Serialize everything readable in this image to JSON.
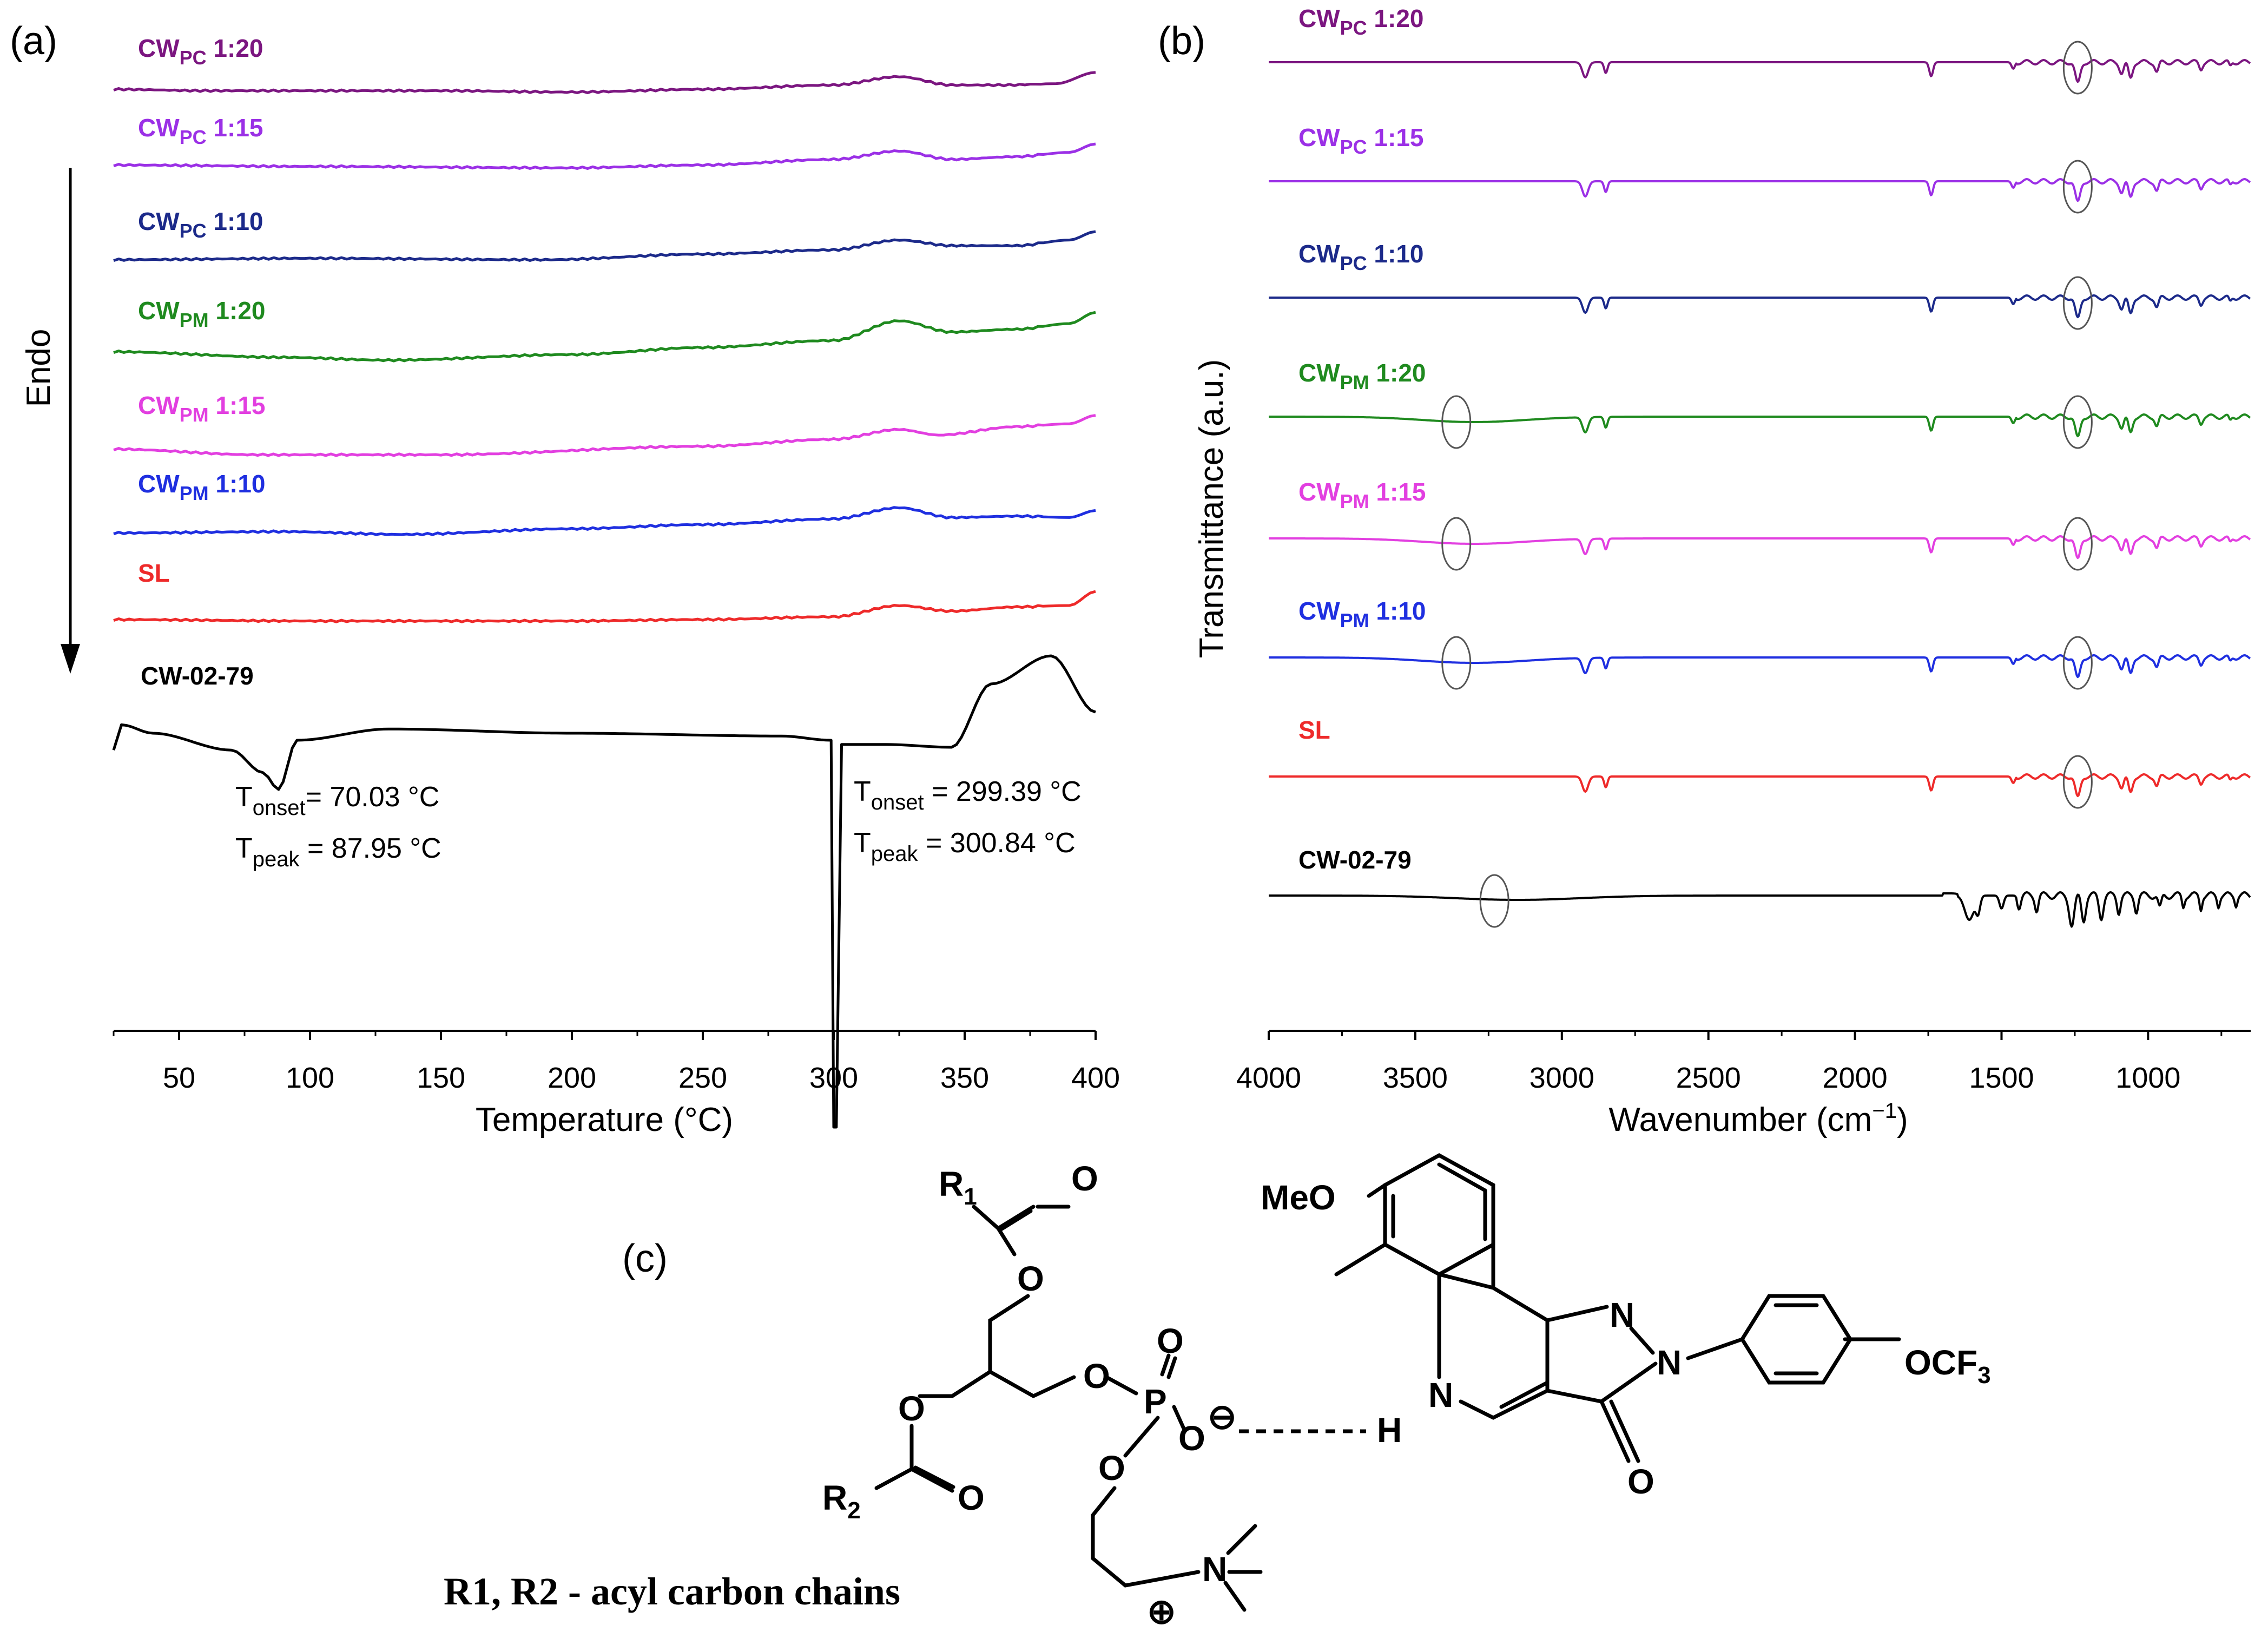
{
  "chart_data": [
    {
      "panel": "(a)",
      "type": "line",
      "xlabel": "Temperature (°C)",
      "ylabel": "Endo",
      "xlim": [
        25,
        400
      ],
      "xticks": [
        50,
        100,
        150,
        200,
        250,
        300,
        350,
        400
      ],
      "series": [
        {
          "name": "CW",
          "sub": "PC",
          "ratio": " 1:20",
          "color": "#7b1680",
          "points": [
            [
              25,
              0
            ],
            [
              60,
              -1
            ],
            [
              150,
              -1
            ],
            [
              200,
              -2
            ],
            [
              250,
              0
            ],
            [
              300,
              3
            ],
            [
              325,
              9
            ],
            [
              345,
              3
            ],
            [
              365,
              3
            ],
            [
              385,
              4
            ],
            [
              400,
              12
            ]
          ]
        },
        {
          "name": "CW",
          "sub": "PC",
          "ratio": " 1:15",
          "color": "#9b30e6",
          "points": [
            [
              25,
              0
            ],
            [
              100,
              -1
            ],
            [
              200,
              -2
            ],
            [
              250,
              0
            ],
            [
              300,
              4
            ],
            [
              325,
              10
            ],
            [
              345,
              4
            ],
            [
              370,
              6
            ],
            [
              390,
              9
            ],
            [
              400,
              15
            ]
          ]
        },
        {
          "name": "CW",
          "sub": "PC",
          "ratio": " 1:10",
          "color": "#1c2a8a",
          "points": [
            [
              25,
              0
            ],
            [
              100,
              1
            ],
            [
              190,
              0
            ],
            [
              250,
              4
            ],
            [
              300,
              7
            ],
            [
              325,
              14
            ],
            [
              345,
              10
            ],
            [
              370,
              10
            ],
            [
              390,
              14
            ],
            [
              400,
              20
            ]
          ]
        },
        {
          "name": "CW",
          "sub": "PM",
          "ratio": " 1:20",
          "color": "#1f8a1f",
          "points": [
            [
              25,
              0
            ],
            [
              90,
              -4
            ],
            [
              130,
              -6
            ],
            [
              200,
              -2
            ],
            [
              250,
              3
            ],
            [
              300,
              8
            ],
            [
              325,
              22
            ],
            [
              345,
              14
            ],
            [
              370,
              16
            ],
            [
              390,
              20
            ],
            [
              400,
              28
            ]
          ]
        },
        {
          "name": "CW",
          "sub": "PM",
          "ratio": " 1:15",
          "color": "#e23fe0",
          "points": [
            [
              25,
              0
            ],
            [
              80,
              -4
            ],
            [
              150,
              -4
            ],
            [
              250,
              2
            ],
            [
              300,
              7
            ],
            [
              325,
              14
            ],
            [
              340,
              10
            ],
            [
              370,
              16
            ],
            [
              390,
              18
            ],
            [
              400,
              24
            ]
          ]
        },
        {
          "name": "CW",
          "sub": "PM",
          "ratio": " 1:10",
          "color": "#1f2fe0",
          "points": [
            [
              25,
              0
            ],
            [
              90,
              1
            ],
            [
              135,
              -1
            ],
            [
              200,
              3
            ],
            [
              250,
              6
            ],
            [
              300,
              10
            ],
            [
              325,
              18
            ],
            [
              345,
              11
            ],
            [
              370,
              12
            ],
            [
              390,
              11
            ],
            [
              400,
              16
            ]
          ]
        },
        {
          "name": "SL",
          "sub": "",
          "ratio": "",
          "color": "#ee2a2a",
          "points": [
            [
              25,
              0
            ],
            [
              100,
              -1
            ],
            [
              200,
              -1
            ],
            [
              250,
              0
            ],
            [
              300,
              2
            ],
            [
              325,
              10
            ],
            [
              345,
              6
            ],
            [
              370,
              9
            ],
            [
              390,
              10
            ],
            [
              400,
              20
            ]
          ]
        },
        {
          "name": "CW-02-79",
          "sub": "",
          "ratio": "",
          "color": "#000000",
          "points": [
            [
              25,
              -12
            ],
            [
              28,
              6
            ],
            [
              40,
              0
            ],
            [
              70,
              -12
            ],
            [
              82,
              -28
            ],
            [
              88,
              -40
            ],
            [
              95,
              -5
            ],
            [
              130,
              3
            ],
            [
              200,
              0
            ],
            [
              280,
              -2
            ],
            [
              299,
              -5
            ],
            [
              300,
              -280
            ],
            [
              301,
              -280
            ],
            [
              303,
              -8
            ],
            [
              320,
              -8
            ],
            [
              345,
              -10
            ],
            [
              360,
              35
            ],
            [
              383,
              55
            ],
            [
              400,
              15
            ]
          ]
        }
      ],
      "annotations": [
        {
          "line1": [
            "T",
            "onset",
            "= 70.03 °C"
          ],
          "line2": [
            "T",
            "peak",
            " = 87.95 °C"
          ]
        },
        {
          "line1": [
            "T",
            "onset",
            " = 299.39 °C"
          ],
          "line2": [
            "T",
            "peak",
            " = 300.84 °C"
          ]
        }
      ]
    },
    {
      "panel": "(b)",
      "type": "line",
      "xlabel": "Wavenumber (cm",
      "xlabel_sup": "−1",
      "xlabel_end": ")",
      "ylabel": "Transmittance (a.u.)",
      "xlim": [
        4000,
        650
      ],
      "xticks": [
        4000,
        3500,
        3000,
        2500,
        2000,
        1500,
        1000
      ],
      "series": [
        {
          "name": "CW",
          "sub": "PC",
          "ratio": " 1:20",
          "color": "#7b1680",
          "circles": [
            1240
          ]
        },
        {
          "name": "CW",
          "sub": "PC",
          "ratio": " 1:15",
          "color": "#9b30e6",
          "circles": [
            1240
          ]
        },
        {
          "name": "CW",
          "sub": "PC",
          "ratio": " 1:10",
          "color": "#1c2a8a",
          "circles": [
            1240
          ]
        },
        {
          "name": "CW",
          "sub": "PM",
          "ratio": " 1:20",
          "color": "#1f8a1f",
          "circles": [
            3360,
            1240
          ]
        },
        {
          "name": "CW",
          "sub": "PM",
          "ratio": " 1:15",
          "color": "#e23fe0",
          "circles": [
            3360,
            1240
          ]
        },
        {
          "name": "CW",
          "sub": "PM",
          "ratio": " 1:10",
          "color": "#1f2fe0",
          "circles": [
            3360,
            1240
          ]
        },
        {
          "name": "SL",
          "sub": "",
          "ratio": "",
          "color": "#ee2a2a",
          "circles": [
            1240
          ]
        },
        {
          "name": "CW-02-79",
          "sub": "",
          "ratio": "",
          "color": "#000000",
          "circles": [
            3230
          ]
        }
      ]
    }
  ],
  "panel_c": {
    "label": "(c)",
    "caption": "R1, R2 - acyl carbon chains",
    "labels": {
      "R1": "R",
      "R1_sub": "1",
      "R2": "R",
      "R2_sub": "2",
      "O": "O",
      "P": "P",
      "N": "N",
      "H": "H",
      "MeO": "MeO",
      "OCF3": "OCF",
      "OCF3_sub": "3",
      "minus": "⊖",
      "plus": "⊕"
    }
  }
}
